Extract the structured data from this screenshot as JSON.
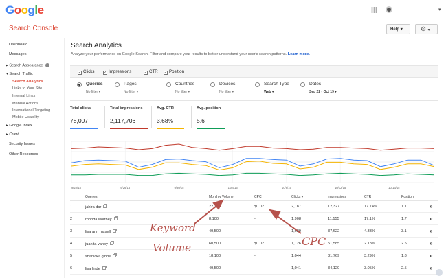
{
  "brand": {
    "logo_letters": [
      "G",
      "o",
      "o",
      "g",
      "l",
      "e"
    ],
    "product": "Search Console"
  },
  "header": {
    "help_label": "Help",
    "help_caret": "▾",
    "gear_glyph": "⚙",
    "gear_caret": "▾"
  },
  "sidebar": {
    "dashboard": "Dashboard",
    "messages": "Messages",
    "search_appearance": "Search Appearance",
    "search_traffic": "Search Traffic",
    "search_analytics": "Search Analytics",
    "links_to_site": "Links to Your Site",
    "internal_links": "Internal Links",
    "manual_actions": "Manual Actions",
    "international_targeting": "International Targeting",
    "mobile_usability": "Mobile Usability",
    "google_index": "Google Index",
    "crawl": "Crawl",
    "security_issues": "Security Issues",
    "other_resources": "Other Resources"
  },
  "page": {
    "title": "Search Analytics",
    "subtitle": "Analyze your performance on Google Search. Filter and compare your results to better understand your user's search patterns.",
    "learn_more": "Learn more."
  },
  "metrics": {
    "clicks": "Clicks",
    "impressions": "Impressions",
    "ctr": "CTR",
    "position": "Position",
    "check": "✓"
  },
  "groups": {
    "queries": "Queries",
    "queries_filter": "No filter ▾",
    "pages": "Pages",
    "pages_filter": "No filter ▾",
    "countries": "Countries",
    "countries_filter": "No filter ▾",
    "devices": "Devices",
    "devices_filter": "No filter ▾",
    "search_type": "Search Type",
    "search_type_value": "Web ▾",
    "dates": "Dates",
    "dates_value": "Sep 22 - Oct 19 ▾"
  },
  "totals": {
    "clicks_label": "Total clicks",
    "clicks_value": "78,007",
    "clicks_color": "#4285f4",
    "impr_label": "Total impressions",
    "impr_value": "2,117,706",
    "impr_color": "#c0392b",
    "ctr_label": "Avg. CTR",
    "ctr_value": "3.68%",
    "ctr_color": "#f4b400",
    "pos_label": "Avg. position",
    "pos_value": "5.6",
    "pos_color": "#0f9d58"
  },
  "chart_data": {
    "type": "line",
    "x": [
      "9/22/15",
      "9/23/15",
      "9/24/15",
      "9/25/15",
      "9/26/15",
      "9/27/15",
      "9/28/15",
      "9/29/15",
      "9/30/15",
      "10/1/15",
      "10/2/15",
      "10/3/15",
      "10/4/15",
      "10/5/15",
      "10/6/15",
      "10/7/15",
      "10/8/15",
      "10/9/15",
      "10/10/15",
      "10/11/15",
      "10/12/15",
      "10/13/15",
      "10/14/15",
      "10/15/15",
      "10/16/15",
      "10/17/15",
      "10/18/15",
      "10/19/15"
    ],
    "x_tick_labels": [
      "9/22/15",
      "9/26/15",
      "9/30/15",
      "10/4/15",
      "10/8/15",
      "10/12/15",
      "10/16/15"
    ],
    "y_scale": "independent per series, not printed",
    "grid": true,
    "series": [
      {
        "name": "Clicks",
        "color": "#4285f4",
        "values": [
          36,
          40,
          41,
          40,
          39,
          28,
          33,
          42,
          43,
          40,
          38,
          27,
          33,
          44,
          44,
          42,
          41,
          30,
          34,
          43,
          44,
          41,
          40,
          29,
          34,
          41,
          41,
          31
        ]
      },
      {
        "name": "Impressions",
        "color": "#c0392b",
        "values": [
          62,
          63,
          65,
          64,
          63,
          60,
          62,
          68,
          70,
          64,
          62,
          59,
          62,
          66,
          66,
          63,
          62,
          60,
          61,
          64,
          64,
          63,
          62,
          59,
          61,
          63,
          63,
          62
        ]
      },
      {
        "name": "CTR",
        "color": "#f4b400",
        "values": [
          30,
          33,
          34,
          33,
          32,
          24,
          28,
          36,
          36,
          33,
          31,
          23,
          27,
          38,
          39,
          35,
          34,
          25,
          28,
          37,
          37,
          34,
          33,
          24,
          28,
          34,
          34,
          29
        ]
      },
      {
        "name": "Position",
        "color": "#0f9d58",
        "values": [
          14,
          14,
          15,
          15,
          15,
          13,
          13,
          16,
          17,
          16,
          15,
          13,
          14,
          17,
          17,
          16,
          15,
          13,
          14,
          16,
          17,
          16,
          15,
          13,
          14,
          16,
          15,
          14
        ]
      }
    ]
  },
  "table": {
    "headers": {
      "num": "",
      "query": "Queries",
      "volume": "Monthly Volume",
      "cpc": "CPC",
      "clicks": "Clicks▼",
      "impressions": "Impressions",
      "ctr": "CTR",
      "position": "Position"
    },
    "expand_glyph": "»",
    "rows": [
      {
        "num": "1",
        "query": "jahira dar",
        "volume": "22,200",
        "cpc": "$0.02",
        "clicks": "2,187",
        "impressions": "12,327",
        "ctr": "17.74%",
        "position": "1.1"
      },
      {
        "num": "2",
        "query": "rhonda worthey",
        "volume": "8,100",
        "cpc": "-",
        "clicks": "1,908",
        "impressions": "11,155",
        "ctr": "17.1%",
        "position": "1.7"
      },
      {
        "num": "3",
        "query": "lisa ann russell",
        "volume": "49,500",
        "cpc": "-",
        "clicks": "1,629",
        "impressions": "37,622",
        "ctr": "4.33%",
        "position": "3.1"
      },
      {
        "num": "4",
        "query": "juanita vanoy",
        "volume": "60,500",
        "cpc": "$0.02",
        "clicks": "1,126",
        "impressions": "51,585",
        "ctr": "2.18%",
        "position": "2.5"
      },
      {
        "num": "5",
        "query": "shanicka gibbs",
        "volume": "18,100",
        "cpc": "-",
        "clicks": "1,044",
        "impressions": "31,769",
        "ctr": "3.29%",
        "position": "1.8"
      },
      {
        "num": "6",
        "query": "lisa linde",
        "volume": "49,500",
        "cpc": "-",
        "clicks": "1,041",
        "impressions": "34,120",
        "ctr": "3.05%",
        "position": "2.5"
      }
    ]
  },
  "annotations": {
    "keyword": "Keyword",
    "volume": "Volume",
    "cpc": "CPC",
    "color": "#b6524c"
  }
}
